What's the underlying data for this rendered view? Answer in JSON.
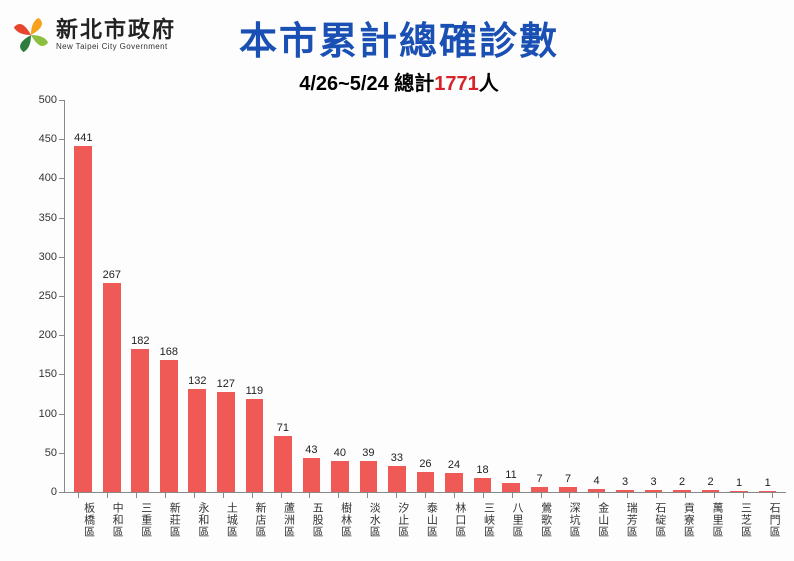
{
  "logo": {
    "cn": "新北市政府",
    "en": "New Taipei City Government",
    "petals": [
      "#e8452f",
      "#f6a21b",
      "#8cbf3f",
      "#2f7d3d"
    ]
  },
  "title": {
    "main": "本市累計總確診數",
    "main_color": "#1a4fb3",
    "subtitle_prefix": "4/26~5/24 總計",
    "subtitle_count": "1771",
    "subtitle_suffix": "人",
    "count_color": "#d8232a"
  },
  "chart": {
    "type": "bar",
    "ymin": 0,
    "ymax": 500,
    "ytick_step": 50,
    "bar_color": "#ef5a57",
    "axis_color": "#888888",
    "label_fontsize": 11,
    "value_fontsize": 11,
    "background": "#fdfdfd",
    "categories": [
      "板橋區",
      "中和區",
      "三重區",
      "新莊區",
      "永和區",
      "土城區",
      "新店區",
      "蘆洲區",
      "五股區",
      "樹林區",
      "淡水區",
      "汐止區",
      "泰山區",
      "林口區",
      "三峽區",
      "八里區",
      "鶯歌區",
      "深坑區",
      "金山區",
      "瑞芳區",
      "石碇區",
      "貢寮區",
      "萬里區",
      "三芝區",
      "石門區"
    ],
    "values": [
      441,
      267,
      182,
      168,
      132,
      127,
      119,
      71,
      43,
      40,
      39,
      33,
      26,
      24,
      18,
      11,
      7,
      7,
      4,
      3,
      3,
      2,
      2,
      1,
      1
    ]
  }
}
